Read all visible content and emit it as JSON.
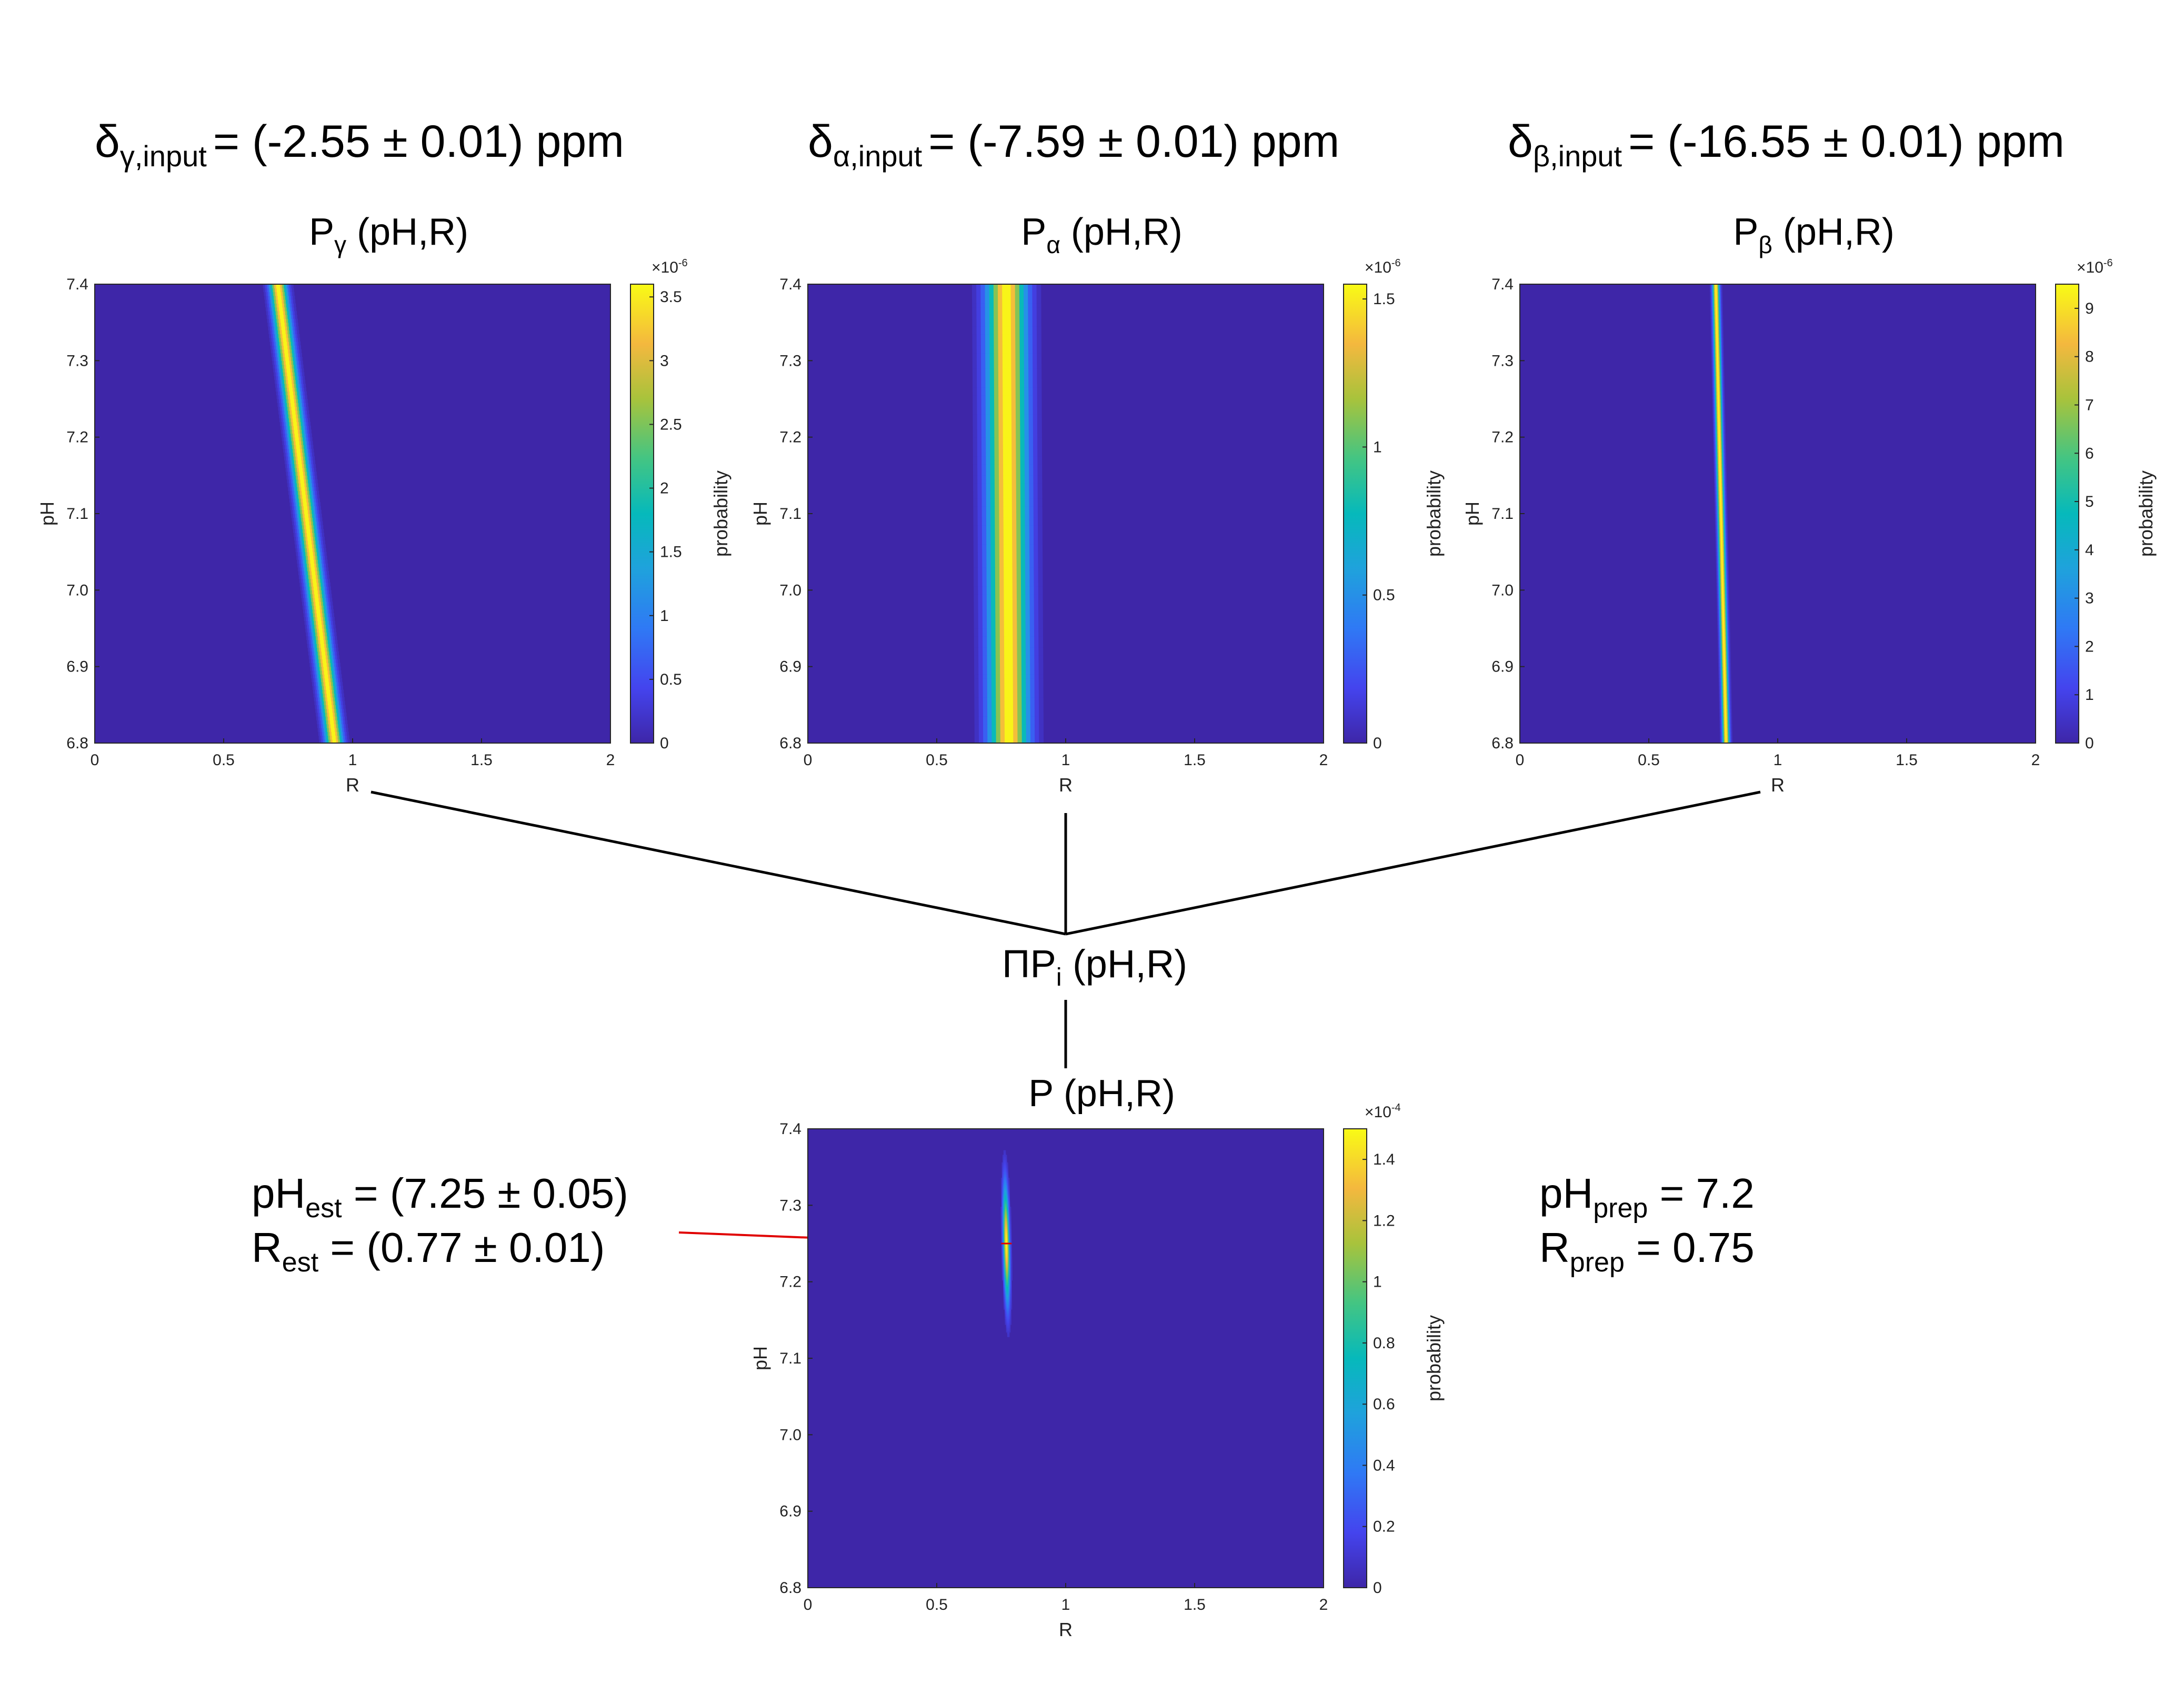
{
  "headers": [
    {
      "prefix": "δ",
      "sub": "γ,input",
      "rest": "= (-2.55 ± 0.01) ppm"
    },
    {
      "prefix": "δ",
      "sub": "α,input",
      "rest": "= (-7.59 ± 0.01) ppm"
    },
    {
      "prefix": "δ",
      "sub": "β,input",
      "rest": "= (-16.55 ± 0.01) ppm"
    }
  ],
  "product_label": {
    "prefix": "ΠP",
    "sub": "i",
    "rest": " (pH,R)"
  },
  "estimate": {
    "line1": {
      "prefix": "pH",
      "sub": "est",
      "rest": " = (7.25 ± 0.05)"
    },
    "line2": {
      "prefix": "R",
      "sub": "est",
      "rest": " = (0.77 ± 0.01)"
    }
  },
  "prepared": {
    "line1": {
      "prefix": "pH",
      "sub": "prep",
      "rest": " = 7.2"
    },
    "line2": {
      "prefix": "R",
      "sub": "prep",
      "rest": " = 0.75"
    }
  },
  "colors": {
    "background": "#3e26a8",
    "arrow": "#e00000",
    "connector": "#000000"
  },
  "chart_data": [
    {
      "type": "heatmap",
      "title": {
        "prefix": "P",
        "sub": "γ",
        "rest": " (pH,R)"
      },
      "xlabel": "R",
      "ylabel": "pH",
      "xlim": [
        0,
        2
      ],
      "ylim": [
        6.8,
        7.4
      ],
      "xticks": [
        "0",
        "0.5",
        "1",
        "1.5",
        "2"
      ],
      "yticks": [
        "6.8",
        "6.9",
        "7.0",
        "7.1",
        "7.2",
        "7.3",
        "7.4"
      ],
      "colorbar": {
        "label": "probability",
        "exponent": "-6",
        "max": 3.6,
        "ticks": [
          "0",
          "0.5",
          "1",
          "1.5",
          "2",
          "2.5",
          "3",
          "3.5"
        ]
      },
      "ridge": {
        "r_at_ph_min": 0.93,
        "r_at_ph_max": 0.71,
        "width_r": 0.022
      }
    },
    {
      "type": "heatmap",
      "title": {
        "prefix": "P",
        "sub": "α",
        "rest": " (pH,R)"
      },
      "xlabel": "R",
      "ylabel": "pH",
      "xlim": [
        0,
        2
      ],
      "ylim": [
        6.8,
        7.4
      ],
      "xticks": [
        "0",
        "0.5",
        "1",
        "1.5",
        "2"
      ],
      "yticks": [
        "6.8",
        "6.9",
        "7.0",
        "7.1",
        "7.2",
        "7.3",
        "7.4"
      ],
      "colorbar": {
        "label": "probability",
        "exponent": "-6",
        "max": 1.55,
        "ticks": [
          "0",
          "0.5",
          "1",
          "1.5"
        ]
      },
      "ridge": {
        "r_at_ph_min": 0.78,
        "r_at_ph_max": 0.77,
        "width_r": 0.05
      }
    },
    {
      "type": "heatmap",
      "title": {
        "prefix": "P",
        "sub": "β",
        "rest": " (pH,R)"
      },
      "xlabel": "R",
      "ylabel": "pH",
      "xlim": [
        0,
        2
      ],
      "ylim": [
        6.8,
        7.4
      ],
      "xticks": [
        "0",
        "0.5",
        "1",
        "1.5",
        "2"
      ],
      "yticks": [
        "6.8",
        "6.9",
        "7.0",
        "7.1",
        "7.2",
        "7.3",
        "7.4"
      ],
      "colorbar": {
        "label": "probability",
        "exponent": "-6",
        "max": 9.5,
        "ticks": [
          "0",
          "1",
          "2",
          "3",
          "4",
          "5",
          "6",
          "7",
          "8",
          "9"
        ]
      },
      "ridge": {
        "r_at_ph_min": 0.8,
        "r_at_ph_max": 0.76,
        "width_r": 0.009
      }
    },
    {
      "type": "heatmap",
      "title": {
        "prefix": "P",
        "sub": "",
        "rest": " (pH,R)"
      },
      "xlabel": "R",
      "ylabel": "pH",
      "xlim": [
        0,
        2
      ],
      "ylim": [
        6.8,
        7.4
      ],
      "xticks": [
        "0",
        "0.5",
        "1",
        "1.5",
        "2"
      ],
      "yticks": [
        "6.8",
        "6.9",
        "7.0",
        "7.1",
        "7.2",
        "7.3",
        "7.4"
      ],
      "colorbar": {
        "label": "probability",
        "exponent": "-4",
        "max": 1.5,
        "ticks": [
          "0",
          "0.2",
          "0.4",
          "0.6",
          "0.8",
          "1",
          "1.2",
          "1.4"
        ]
      },
      "peak": {
        "r": 0.77,
        "ph": 7.25,
        "sigma_r": 0.008,
        "sigma_ph": 0.05
      },
      "marker": {
        "r": 0.77,
        "ph": 7.25
      }
    }
  ]
}
